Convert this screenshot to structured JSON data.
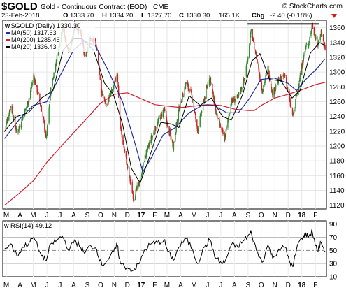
{
  "header": {
    "symbol": "$GOLD",
    "description": "Gold - Continuous Contract (EOD)",
    "exchange": "CME",
    "watermark": "© StockCharts.com",
    "date": "23-Feb-2018",
    "open_label": "O",
    "open": "1333.70",
    "high_label": "H",
    "high": "1334.20",
    "low_label": "L",
    "low": "1327.70",
    "close_label": "C",
    "close": "1330.30",
    "volume": "165.1K",
    "chg_label": "Chg",
    "chg": "-2.40 (-0.18%)"
  },
  "colors": {
    "up": "#2e8b2e",
    "down": "#cc2222",
    "ma50": "#1a2fa0",
    "ma200": "#d0202e",
    "ma20": "#000000",
    "rsi": "#000000"
  },
  "chart_data": [
    {
      "type": "line",
      "title": "$GOLD Gold - Continuous Contract (EOD) CME",
      "series_style": "candlestick",
      "legend": [
        {
          "name": "$GOLD (Daily) 1330.30"
        },
        {
          "name": "MA(50) 1317.63"
        },
        {
          "name": "MA(200) 1285.46"
        },
        {
          "name": "MA(20) 1336.43"
        }
      ],
      "legend_position": "top-left",
      "x_ticks": [
        "M",
        "A",
        "M",
        "J",
        "J",
        "A",
        "S",
        "O",
        "N",
        "D",
        "17",
        "F",
        "M",
        "A",
        "M",
        "J",
        "J",
        "A",
        "S",
        "O",
        "N",
        "D",
        "18",
        "F"
      ],
      "y_ticks": [
        1120,
        1140,
        1160,
        1180,
        1200,
        1220,
        1240,
        1260,
        1280,
        1300,
        1320,
        1340,
        1360
      ],
      "ylim": [
        1115,
        1370
      ],
      "grid": true,
      "close_path": [
        [
          "2016-02-26",
          1220
        ],
        [
          "2016-03-11",
          1255
        ],
        [
          "2016-03-25",
          1218
        ],
        [
          "2016-04-08",
          1240
        ],
        [
          "2016-04-22",
          1265
        ],
        [
          "2016-05-02",
          1295
        ],
        [
          "2016-05-20",
          1250
        ],
        [
          "2016-05-31",
          1210
        ],
        [
          "2016-06-10",
          1275
        ],
        [
          "2016-06-24",
          1320
        ],
        [
          "2016-07-06",
          1360
        ],
        [
          "2016-07-22",
          1325
        ],
        [
          "2016-08-03",
          1365
        ],
        [
          "2016-08-17",
          1352
        ],
        [
          "2016-08-26",
          1320
        ],
        [
          "2016-09-08",
          1345
        ],
        [
          "2016-09-22",
          1335
        ],
        [
          "2016-10-04",
          1270
        ],
        [
          "2016-10-14",
          1255
        ],
        [
          "2016-10-31",
          1280
        ],
        [
          "2016-11-08",
          1300
        ],
        [
          "2016-11-15",
          1225
        ],
        [
          "2016-11-30",
          1175
        ],
        [
          "2016-12-15",
          1130
        ],
        [
          "2016-12-28",
          1150
        ],
        [
          "2017-01-10",
          1185
        ],
        [
          "2017-01-24",
          1210
        ],
        [
          "2017-02-07",
          1230
        ],
        [
          "2017-02-22",
          1250
        ],
        [
          "2017-03-03",
          1225
        ],
        [
          "2017-03-15",
          1200
        ],
        [
          "2017-03-28",
          1250
        ],
        [
          "2017-04-13",
          1285
        ],
        [
          "2017-04-28",
          1265
        ],
        [
          "2017-05-09",
          1220
        ],
        [
          "2017-05-25",
          1265
        ],
        [
          "2017-06-06",
          1295
        ],
        [
          "2017-06-20",
          1245
        ],
        [
          "2017-07-03",
          1220
        ],
        [
          "2017-07-10",
          1210
        ],
        [
          "2017-07-25",
          1260
        ],
        [
          "2017-08-08",
          1265
        ],
        [
          "2017-08-24",
          1290
        ],
        [
          "2017-09-05",
          1340
        ],
        [
          "2017-09-08",
          1355
        ],
        [
          "2017-09-20",
          1320
        ],
        [
          "2017-10-03",
          1275
        ],
        [
          "2017-10-16",
          1305
        ],
        [
          "2017-10-27",
          1270
        ],
        [
          "2017-11-10",
          1290
        ],
        [
          "2017-11-24",
          1295
        ],
        [
          "2017-12-06",
          1255
        ],
        [
          "2017-12-12",
          1240
        ],
        [
          "2017-12-22",
          1275
        ],
        [
          "2018-01-05",
          1320
        ],
        [
          "2018-01-11",
          1335
        ],
        [
          "2018-01-17",
          1340
        ],
        [
          "2018-01-25",
          1365
        ],
        [
          "2018-02-05",
          1335
        ],
        [
          "2018-02-14",
          1355
        ],
        [
          "2018-02-23",
          1330
        ]
      ],
      "ma50": [
        [
          "2016-02-26",
          1210
        ],
        [
          "2016-04-01",
          1237
        ],
        [
          "2016-05-01",
          1255
        ],
        [
          "2016-06-01",
          1260
        ],
        [
          "2016-07-01",
          1295
        ],
        [
          "2016-08-01",
          1330
        ],
        [
          "2016-08-25",
          1342
        ],
        [
          "2016-09-20",
          1335
        ],
        [
          "2016-10-20",
          1300
        ],
        [
          "2016-11-20",
          1260
        ],
        [
          "2016-12-20",
          1200
        ],
        [
          "2017-01-05",
          1165
        ],
        [
          "2017-01-25",
          1185
        ],
        [
          "2017-02-20",
          1215
        ],
        [
          "2017-03-20",
          1225
        ],
        [
          "2017-04-20",
          1245
        ],
        [
          "2017-05-20",
          1255
        ],
        [
          "2017-06-15",
          1255
        ],
        [
          "2017-07-15",
          1245
        ],
        [
          "2017-08-10",
          1245
        ],
        [
          "2017-09-05",
          1265
        ],
        [
          "2017-09-30",
          1290
        ],
        [
          "2017-10-30",
          1292
        ],
        [
          "2017-11-30",
          1285
        ],
        [
          "2017-12-20",
          1275
        ],
        [
          "2018-01-10",
          1290
        ],
        [
          "2018-02-05",
          1305
        ],
        [
          "2018-02-23",
          1318
        ]
      ],
      "ma200": [
        [
          "2016-02-26",
          1120
        ],
        [
          "2016-04-01",
          1137
        ],
        [
          "2016-05-01",
          1153
        ],
        [
          "2016-06-01",
          1178
        ],
        [
          "2016-07-01",
          1198
        ],
        [
          "2016-08-01",
          1218
        ],
        [
          "2016-09-01",
          1238
        ],
        [
          "2016-10-01",
          1258
        ],
        [
          "2016-11-01",
          1270
        ],
        [
          "2016-12-01",
          1272
        ],
        [
          "2017-01-01",
          1264
        ],
        [
          "2017-02-01",
          1256
        ],
        [
          "2017-03-01",
          1254
        ],
        [
          "2017-04-01",
          1252
        ],
        [
          "2017-05-01",
          1254
        ],
        [
          "2017-06-01",
          1256
        ],
        [
          "2017-07-01",
          1255
        ],
        [
          "2017-08-01",
          1250
        ],
        [
          "2017-09-01",
          1248
        ],
        [
          "2017-09-15",
          1248
        ],
        [
          "2017-10-01",
          1255
        ],
        [
          "2017-11-01",
          1265
        ],
        [
          "2017-12-01",
          1270
        ],
        [
          "2018-01-01",
          1276
        ],
        [
          "2018-02-01",
          1283
        ],
        [
          "2018-02-23",
          1286
        ]
      ],
      "ma20": [
        [
          "2016-02-26",
          1220
        ],
        [
          "2016-03-25",
          1240
        ],
        [
          "2016-04-20",
          1245
        ],
        [
          "2016-05-20",
          1265
        ],
        [
          "2016-06-15",
          1275
        ],
        [
          "2016-07-08",
          1330
        ],
        [
          "2016-08-01",
          1345
        ],
        [
          "2016-08-20",
          1345
        ],
        [
          "2016-09-15",
          1330
        ],
        [
          "2016-10-10",
          1285
        ],
        [
          "2016-10-30",
          1270
        ],
        [
          "2016-11-20",
          1230
        ],
        [
          "2016-12-10",
          1170
        ],
        [
          "2016-12-30",
          1150
        ],
        [
          "2017-01-20",
          1185
        ],
        [
          "2017-02-15",
          1232
        ],
        [
          "2017-03-10",
          1230
        ],
        [
          "2017-03-28",
          1225
        ],
        [
          "2017-04-20",
          1268
        ],
        [
          "2017-05-15",
          1255
        ],
        [
          "2017-06-10",
          1265
        ],
        [
          "2017-07-05",
          1240
        ],
        [
          "2017-07-25",
          1235
        ],
        [
          "2017-08-20",
          1270
        ],
        [
          "2017-09-10",
          1315
        ],
        [
          "2017-09-28",
          1325
        ],
        [
          "2017-10-20",
          1290
        ],
        [
          "2017-11-15",
          1288
        ],
        [
          "2017-12-10",
          1265
        ],
        [
          "2017-12-28",
          1275
        ],
        [
          "2018-01-20",
          1325
        ],
        [
          "2018-02-10",
          1340
        ],
        [
          "2018-02-23",
          1336
        ]
      ],
      "resistance_line": {
        "y": 1365,
        "x_start": "2017-08-31",
        "x_end": "2018-02-09"
      }
    },
    {
      "type": "line",
      "title": "RSI(14) 49.12",
      "legend_position": "top-left",
      "x_ticks": [
        "M",
        "A",
        "M",
        "J",
        "J",
        "A",
        "S",
        "O",
        "N",
        "D",
        "17",
        "F",
        "M",
        "A",
        "M",
        "J",
        "J",
        "A",
        "S",
        "O",
        "N",
        "D",
        "18",
        "F"
      ],
      "y_ticks": [
        10,
        30,
        50,
        70,
        90
      ],
      "ylim": [
        10,
        95
      ],
      "reference_lines": [
        30,
        50,
        70
      ],
      "rsi": [
        [
          "2016-02-26",
          52
        ],
        [
          "2016-03-11",
          60
        ],
        [
          "2016-03-25",
          42
        ],
        [
          "2016-04-08",
          55
        ],
        [
          "2016-04-22",
          62
        ],
        [
          "2016-05-02",
          70
        ],
        [
          "2016-05-20",
          42
        ],
        [
          "2016-05-31",
          35
        ],
        [
          "2016-06-10",
          60
        ],
        [
          "2016-06-24",
          65
        ],
        [
          "2016-07-06",
          72
        ],
        [
          "2016-07-22",
          50
        ],
        [
          "2016-08-03",
          66
        ],
        [
          "2016-08-17",
          55
        ],
        [
          "2016-08-26",
          45
        ],
        [
          "2016-09-08",
          58
        ],
        [
          "2016-09-22",
          52
        ],
        [
          "2016-10-04",
          28
        ],
        [
          "2016-10-14",
          33
        ],
        [
          "2016-10-31",
          48
        ],
        [
          "2016-11-08",
          58
        ],
        [
          "2016-11-15",
          30
        ],
        [
          "2016-11-30",
          24
        ],
        [
          "2016-12-15",
          20
        ],
        [
          "2016-12-28",
          30
        ],
        [
          "2017-01-10",
          52
        ],
        [
          "2017-01-24",
          60
        ],
        [
          "2017-02-07",
          62
        ],
        [
          "2017-02-22",
          66
        ],
        [
          "2017-03-03",
          48
        ],
        [
          "2017-03-15",
          35
        ],
        [
          "2017-03-28",
          55
        ],
        [
          "2017-04-13",
          68
        ],
        [
          "2017-04-28",
          52
        ],
        [
          "2017-05-09",
          30
        ],
        [
          "2017-05-25",
          55
        ],
        [
          "2017-06-06",
          66
        ],
        [
          "2017-06-20",
          38
        ],
        [
          "2017-07-03",
          30
        ],
        [
          "2017-07-10",
          32
        ],
        [
          "2017-07-25",
          58
        ],
        [
          "2017-08-08",
          56
        ],
        [
          "2017-08-24",
          66
        ],
        [
          "2017-09-05",
          75
        ],
        [
          "2017-09-08",
          78
        ],
        [
          "2017-09-20",
          50
        ],
        [
          "2017-10-03",
          32
        ],
        [
          "2017-10-16",
          58
        ],
        [
          "2017-10-27",
          38
        ],
        [
          "2017-11-10",
          52
        ],
        [
          "2017-11-24",
          55
        ],
        [
          "2017-12-06",
          30
        ],
        [
          "2017-12-12",
          25
        ],
        [
          "2017-12-22",
          58
        ],
        [
          "2018-01-05",
          72
        ],
        [
          "2018-01-11",
          74
        ],
        [
          "2018-01-17",
          72
        ],
        [
          "2018-01-25",
          78
        ],
        [
          "2018-02-05",
          48
        ],
        [
          "2018-02-14",
          62
        ],
        [
          "2018-02-23",
          49
        ]
      ]
    }
  ]
}
